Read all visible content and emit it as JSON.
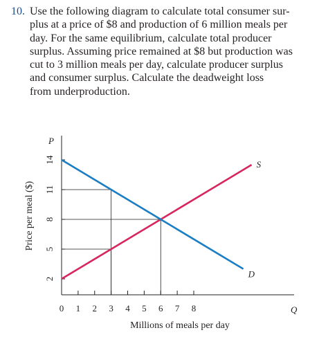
{
  "question": {
    "number": "10.",
    "lines": [
      "Use the following diagram to calculate total consumer sur-",
      "plus at a price of $8 and production of 6 million meals per",
      "day. For the same equilibrium, calculate total producer",
      "surplus. Assuming price remained at $8 but production was",
      "cut to 3 million meals per day, calculate producer surplus",
      "and consumer surplus. Calculate the deadweight loss",
      "from underproduction."
    ]
  },
  "chart_data": {
    "type": "line",
    "title": "",
    "xlabel": "Millions of meals per day",
    "ylabel": "Price per meal ($)",
    "x_axis_letter": "Q",
    "y_axis_letter": "P",
    "xlim": [
      0,
      8
    ],
    "ylim": [
      2,
      14
    ],
    "x_ticks": [
      "0",
      "1",
      "2",
      "3",
      "4",
      "5",
      "6",
      "7",
      "8"
    ],
    "y_ticks": [
      "2",
      "5",
      "8",
      "11",
      "14"
    ],
    "grid": false,
    "series": [
      {
        "name": "S",
        "color": "#d6265d",
        "x": [
          0,
          3,
          6,
          11.5
        ],
        "y": [
          2,
          5,
          8,
          13.5
        ]
      },
      {
        "name": "D",
        "color": "#1b7ec2",
        "x": [
          0,
          3,
          6,
          11
        ],
        "y": [
          14,
          11,
          8,
          3
        ]
      }
    ],
    "guides": [
      {
        "x": 3,
        "y": 11
      },
      {
        "x": 6,
        "y": 8
      },
      {
        "x": 3,
        "y": 5
      }
    ],
    "guide_color": "#231f20"
  }
}
